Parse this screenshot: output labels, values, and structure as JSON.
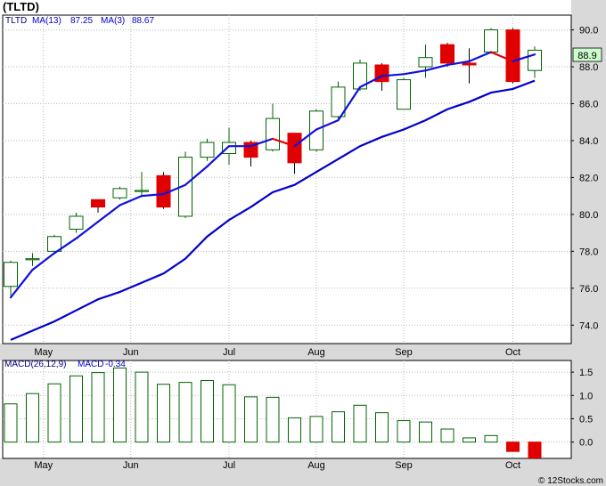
{
  "chart_data": [
    {
      "type": "candlestick",
      "title": "(TLTD)",
      "symbol": "TLTD",
      "x_labels": [
        "May",
        "Jun",
        "Jul",
        "Aug",
        "Sep",
        "Oct"
      ],
      "ylim": [
        73.0,
        90.8
      ],
      "y_ticks": [
        74.0,
        76.0,
        78.0,
        80.0,
        82.0,
        84.0,
        86.0,
        88.0,
        90.0
      ],
      "y_tick_labels": [
        "74.0",
        "76.0",
        "78.0",
        "80.0",
        "82.0",
        "84.0",
        "86.0",
        "88.0",
        "90.0"
      ],
      "last_price_label": "88.9",
      "grid": true,
      "legend_placement": "top-left",
      "legend": [
        {
          "name": "TLTD",
          "value": ""
        },
        {
          "name": "MA(13)",
          "value": "87.25"
        },
        {
          "name": "MA(3)",
          "value": "88.67"
        }
      ],
      "candles": [
        {
          "open": 76.1,
          "high": 77.5,
          "low": 75.6,
          "close": 77.4
        },
        {
          "open": 77.6,
          "high": 77.9,
          "low": 77.2,
          "close": 77.6
        },
        {
          "open": 78.0,
          "high": 78.9,
          "low": 77.9,
          "close": 78.8
        },
        {
          "open": 79.2,
          "high": 80.1,
          "low": 79.0,
          "close": 79.9
        },
        {
          "open": 80.8,
          "high": 80.8,
          "low": 80.1,
          "close": 80.4
        },
        {
          "open": 80.9,
          "high": 81.5,
          "low": 80.8,
          "close": 81.4
        },
        {
          "open": 81.3,
          "high": 82.3,
          "low": 81.0,
          "close": 81.3
        },
        {
          "open": 82.1,
          "high": 82.3,
          "low": 80.3,
          "close": 80.4
        },
        {
          "open": 79.9,
          "high": 83.4,
          "low": 79.8,
          "close": 83.1
        },
        {
          "open": 83.1,
          "high": 84.1,
          "low": 82.9,
          "close": 83.9
        },
        {
          "open": 83.3,
          "high": 84.7,
          "low": 82.7,
          "close": 83.9
        },
        {
          "open": 83.9,
          "high": 84.0,
          "low": 82.6,
          "close": 83.1
        },
        {
          "open": 83.5,
          "high": 86.0,
          "low": 83.4,
          "close": 85.2
        },
        {
          "open": 84.4,
          "high": 84.4,
          "low": 82.2,
          "close": 82.8
        },
        {
          "open": 83.5,
          "high": 85.7,
          "low": 83.4,
          "close": 85.6
        },
        {
          "open": 85.3,
          "high": 87.2,
          "low": 85.2,
          "close": 86.9
        },
        {
          "open": 86.8,
          "high": 88.4,
          "low": 86.7,
          "close": 88.2
        },
        {
          "open": 88.1,
          "high": 88.2,
          "low": 86.7,
          "close": 87.2
        },
        {
          "open": 85.7,
          "high": 87.4,
          "low": 85.7,
          "close": 87.3
        },
        {
          "open": 88.0,
          "high": 89.2,
          "low": 87.4,
          "close": 88.5
        },
        {
          "open": 89.2,
          "high": 89.3,
          "low": 88.0,
          "close": 88.2
        },
        {
          "open": 88.2,
          "high": 89.0,
          "low": 87.1,
          "close": 88.1
        },
        {
          "open": 88.8,
          "high": 90.1,
          "low": 88.7,
          "close": 90.0
        },
        {
          "open": 90.0,
          "high": 90.1,
          "low": 87.1,
          "close": 87.2
        },
        {
          "open": 87.8,
          "high": 89.1,
          "low": 87.4,
          "close": 88.9
        }
      ],
      "ma13": [
        73.2,
        73.7,
        74.2,
        74.8,
        75.4,
        75.8,
        76.3,
        76.8,
        77.6,
        78.8,
        79.7,
        80.4,
        81.2,
        81.6,
        82.3,
        83.0,
        83.7,
        84.2,
        84.6,
        85.1,
        85.7,
        86.1,
        86.6,
        86.8,
        87.25
      ],
      "ma3": [
        75.5,
        77.0,
        77.9,
        78.7,
        79.6,
        80.5,
        81.0,
        81.1,
        81.6,
        82.6,
        83.7,
        83.7,
        84.1,
        83.7,
        84.6,
        85.1,
        86.9,
        87.5,
        87.6,
        87.8,
        88.1,
        88.3,
        88.8,
        88.3,
        88.67
      ],
      "x_label_positions": [
        1.5,
        5.5,
        10.0,
        14.0,
        18.0,
        23.0
      ]
    },
    {
      "type": "bar",
      "title": "",
      "legend": [
        {
          "name": "MACD(26,12,9)",
          "value": ""
        },
        {
          "name": "MACD",
          "value": "-0.34"
        }
      ],
      "ylim": [
        -0.35,
        1.75
      ],
      "y_ticks": [
        0.0,
        0.5,
        1.0,
        1.5
      ],
      "y_tick_labels": [
        "0.0",
        "0.5",
        "1.0",
        "1.5"
      ],
      "values": [
        0.82,
        1.04,
        1.25,
        1.42,
        1.49,
        1.59,
        1.5,
        1.24,
        1.28,
        1.32,
        1.23,
        0.97,
        0.96,
        0.52,
        0.55,
        0.65,
        0.79,
        0.63,
        0.46,
        0.43,
        0.28,
        0.09,
        0.14,
        -0.2,
        -0.34
      ],
      "x_labels": [
        "May",
        "Jun",
        "Jul",
        "Aug",
        "Sep",
        "Oct"
      ]
    }
  ],
  "watermark": "© 12Stocks.com",
  "colors": {
    "up_candle": "#006400",
    "down_candle": "#e00000",
    "ma13_line": "#0000cc",
    "ma3_line": "#1010dd",
    "ma3_down": "#e00000",
    "macd_bar": "#006400",
    "macd_neg": "#e00000",
    "grid": "#b8b8b8",
    "panel_bg": "#ffffff",
    "axis_bg": "#d9d9d9"
  }
}
